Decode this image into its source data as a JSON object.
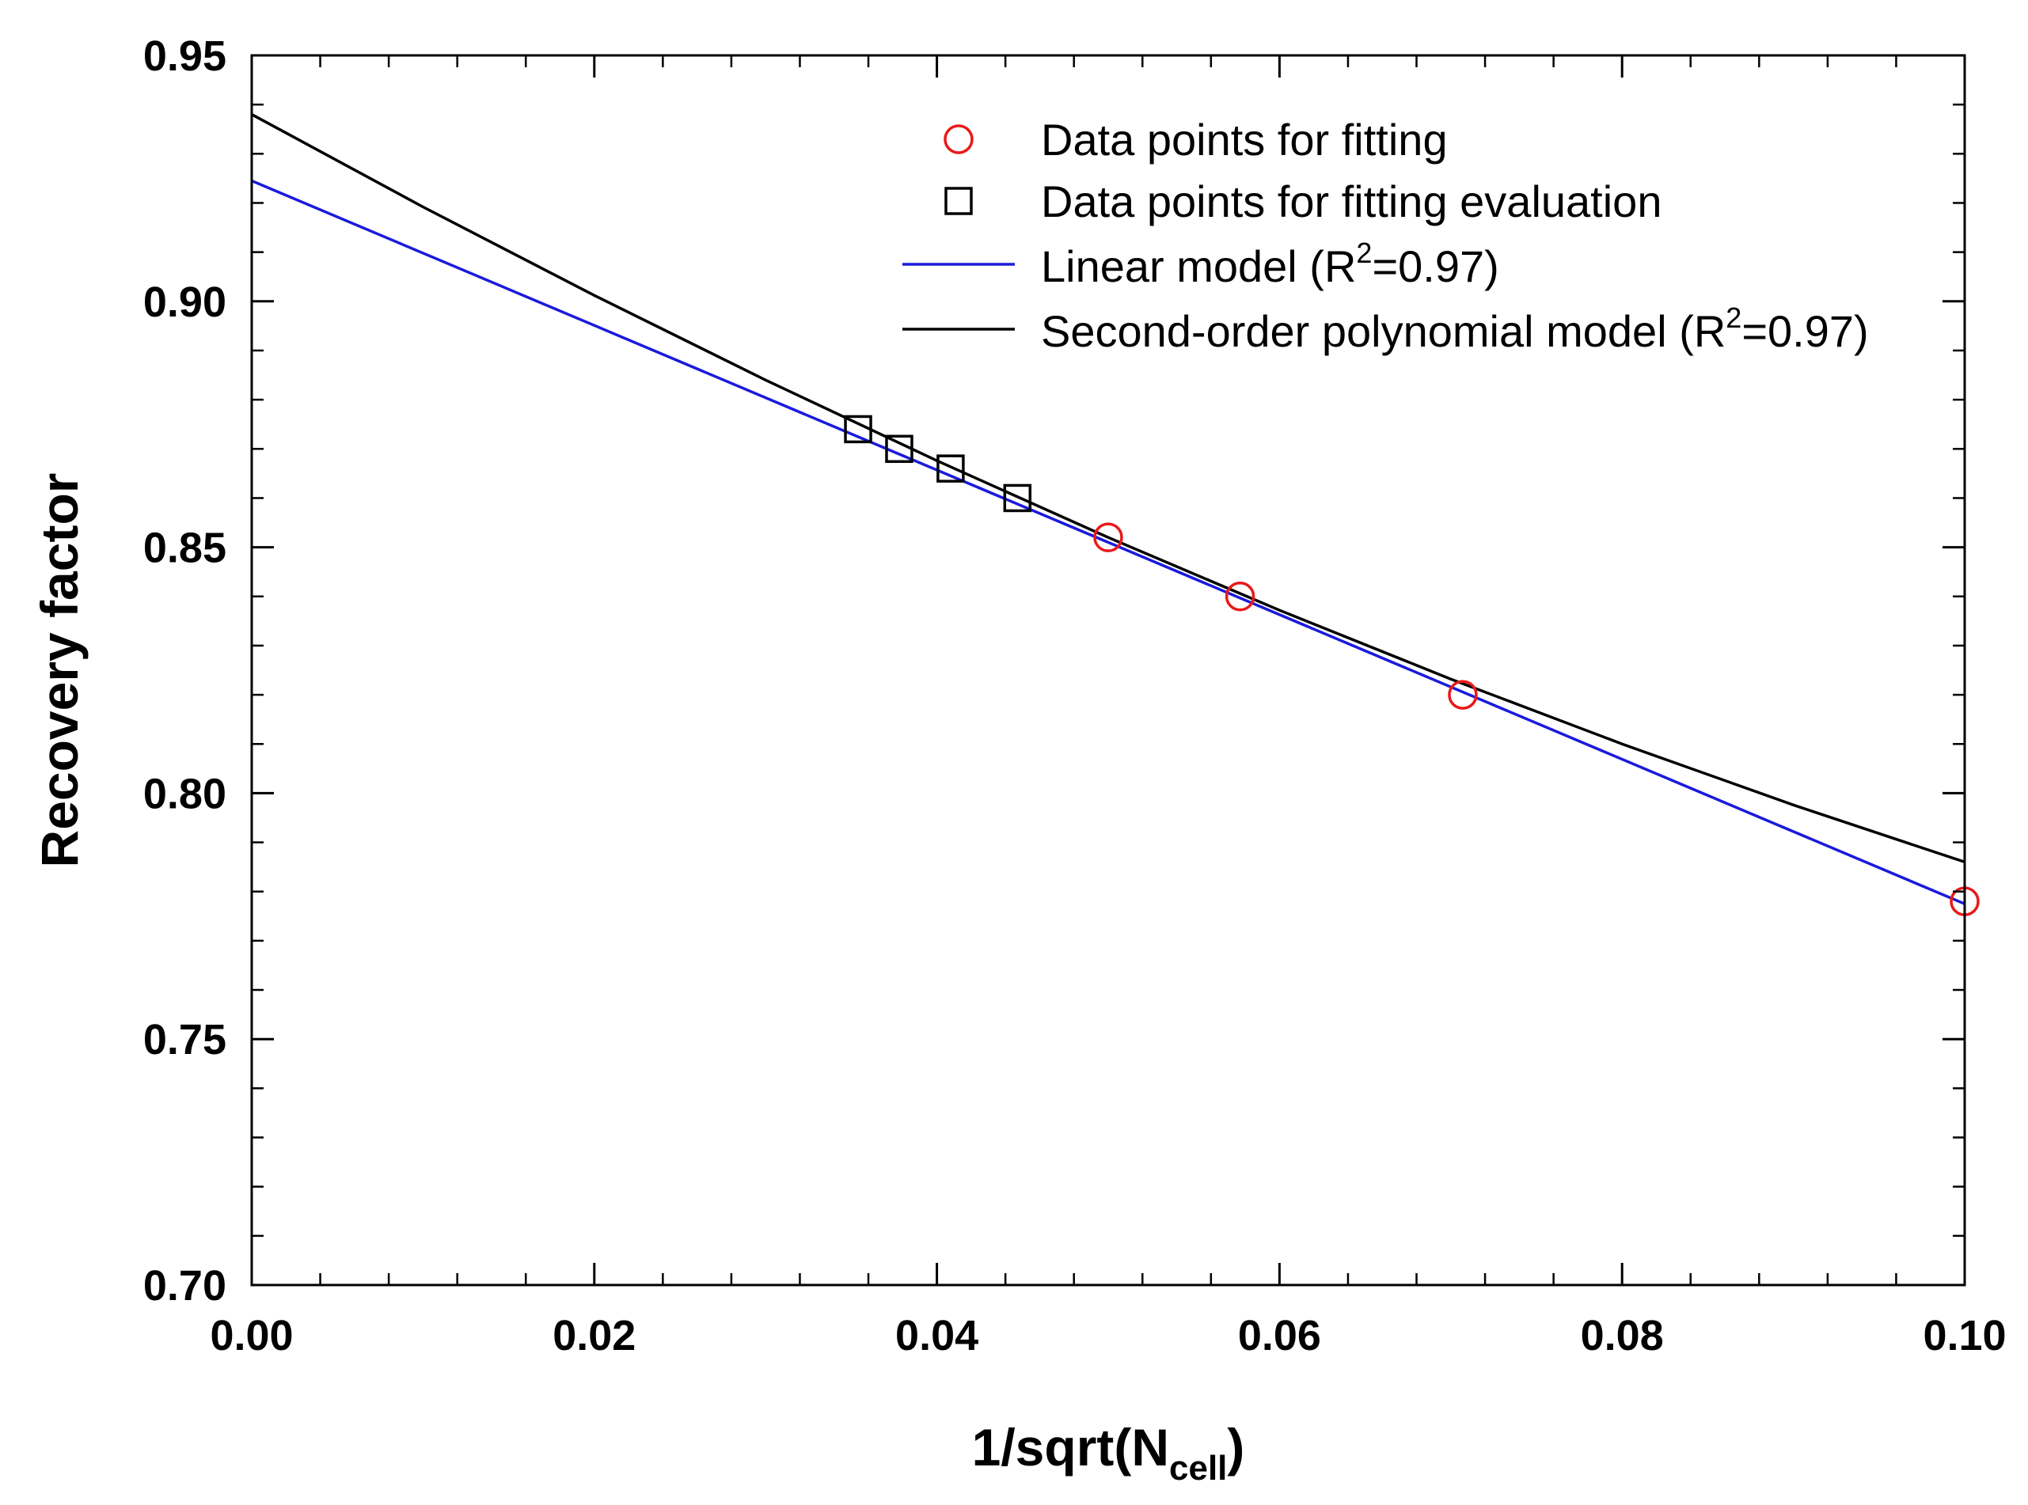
{
  "chart_data": {
    "type": "line",
    "title": "",
    "xlabel": {
      "prefix": "1/sqrt(N",
      "subscript": "cell",
      "suffix": ")"
    },
    "ylabel": "Recovery factor",
    "xlim": [
      0.0,
      0.1
    ],
    "ylim": [
      0.7,
      0.95
    ],
    "x_ticks": [
      "0.00",
      "0.02",
      "0.04",
      "0.06",
      "0.08",
      "0.10"
    ],
    "x_tick_values": [
      0.0,
      0.02,
      0.04,
      0.06,
      0.08,
      0.1
    ],
    "y_ticks": [
      "0.70",
      "0.75",
      "0.80",
      "0.85",
      "0.90",
      "0.95"
    ],
    "y_tick_values": [
      0.7,
      0.75,
      0.8,
      0.85,
      0.9,
      0.95
    ],
    "grid": false,
    "legend_position": "top-right",
    "series": [
      {
        "name": "Data points for fitting",
        "kind": "scatter",
        "marker": "circle",
        "color": "#e8191a",
        "x": [
          0.05,
          0.0577,
          0.0707,
          0.1
        ],
        "y": [
          0.852,
          0.84,
          0.82,
          0.778
        ]
      },
      {
        "name": "Data points for fitting evaluation",
        "kind": "scatter",
        "marker": "square",
        "color": "#000000",
        "x": [
          0.0354,
          0.0378,
          0.0408,
          0.0447
        ],
        "y": [
          0.874,
          0.87,
          0.866,
          0.86
        ]
      },
      {
        "name": "Linear model",
        "r2_label": {
          "prefix": "Linear model (R",
          "sup": "2",
          "suffix": "=0.97)"
        },
        "kind": "line",
        "color": "#1a1adc",
        "x": [
          0.0,
          0.1
        ],
        "y": [
          0.9245,
          0.7775
        ]
      },
      {
        "name": "Second-order polynomial model",
        "r2_label": {
          "prefix": "Second-order polynomial model (R",
          "sup": "2",
          "suffix": "=0.97)"
        },
        "kind": "line",
        "color": "#000000",
        "x": [
          0.0,
          0.01,
          0.02,
          0.03,
          0.04,
          0.05,
          0.06,
          0.07,
          0.08,
          0.09,
          0.1
        ],
        "y": [
          0.938,
          0.9192,
          0.9012,
          0.884,
          0.8676,
          0.852,
          0.8372,
          0.8232,
          0.81,
          0.7976,
          0.786
        ]
      }
    ]
  }
}
